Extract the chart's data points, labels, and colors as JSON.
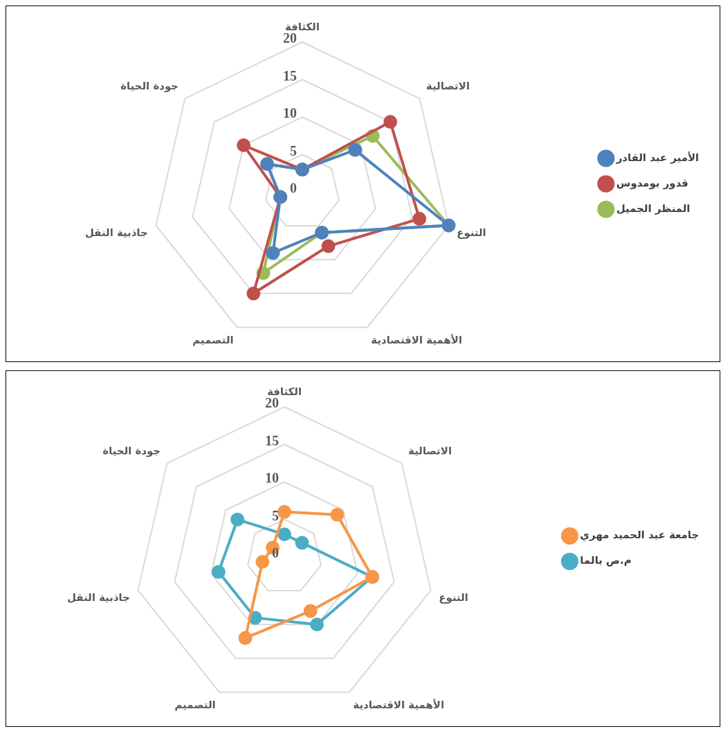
{
  "chart_data": [
    {
      "type": "radar",
      "categories": [
        "الكثافة",
        "الاتصالية",
        "التنوع",
        "الأهمية الاقتصادية",
        "التصميم",
        "جاذبية النقل",
        "جودة الحياة"
      ],
      "series": [
        {
          "name": "الأمير عبد القادر",
          "color": "#4f81bd",
          "values": [
            3,
            9,
            20,
            6,
            9,
            3,
            6
          ]
        },
        {
          "name": "قدور بومدوس",
          "color": "#c0504d",
          "values": [
            3,
            15,
            16,
            8,
            15,
            3,
            10
          ]
        },
        {
          "name": "المنظر الجميل",
          "color": "#9bbb59",
          "values": [
            3,
            12,
            20,
            6,
            12,
            3,
            6
          ]
        }
      ],
      "ylim": [
        0,
        20
      ],
      "yticks": [
        0,
        5,
        10,
        15,
        20
      ],
      "grid": true,
      "legend": "right",
      "marker": "circle"
    },
    {
      "type": "radar",
      "categories": [
        "الكثافة",
        "الاتصالية",
        "التنوع",
        "الأهمية الاقتصادية",
        "التصميم",
        "جاذبية النقل",
        "جودة الحياة"
      ],
      "series": [
        {
          "name": "جامعة عبد الحميد مهري",
          "color": "#f79646",
          "values": [
            6,
            9,
            12,
            8,
            12,
            3,
            2
          ]
        },
        {
          "name": "م.ص بالما",
          "color": "#4bacc6",
          "values": [
            3,
            3,
            12,
            10,
            9,
            9,
            8
          ]
        }
      ],
      "ylim": [
        0,
        20
      ],
      "yticks": [
        0,
        5,
        10,
        15,
        20
      ],
      "grid": true,
      "legend": "right",
      "marker": "circle"
    }
  ]
}
